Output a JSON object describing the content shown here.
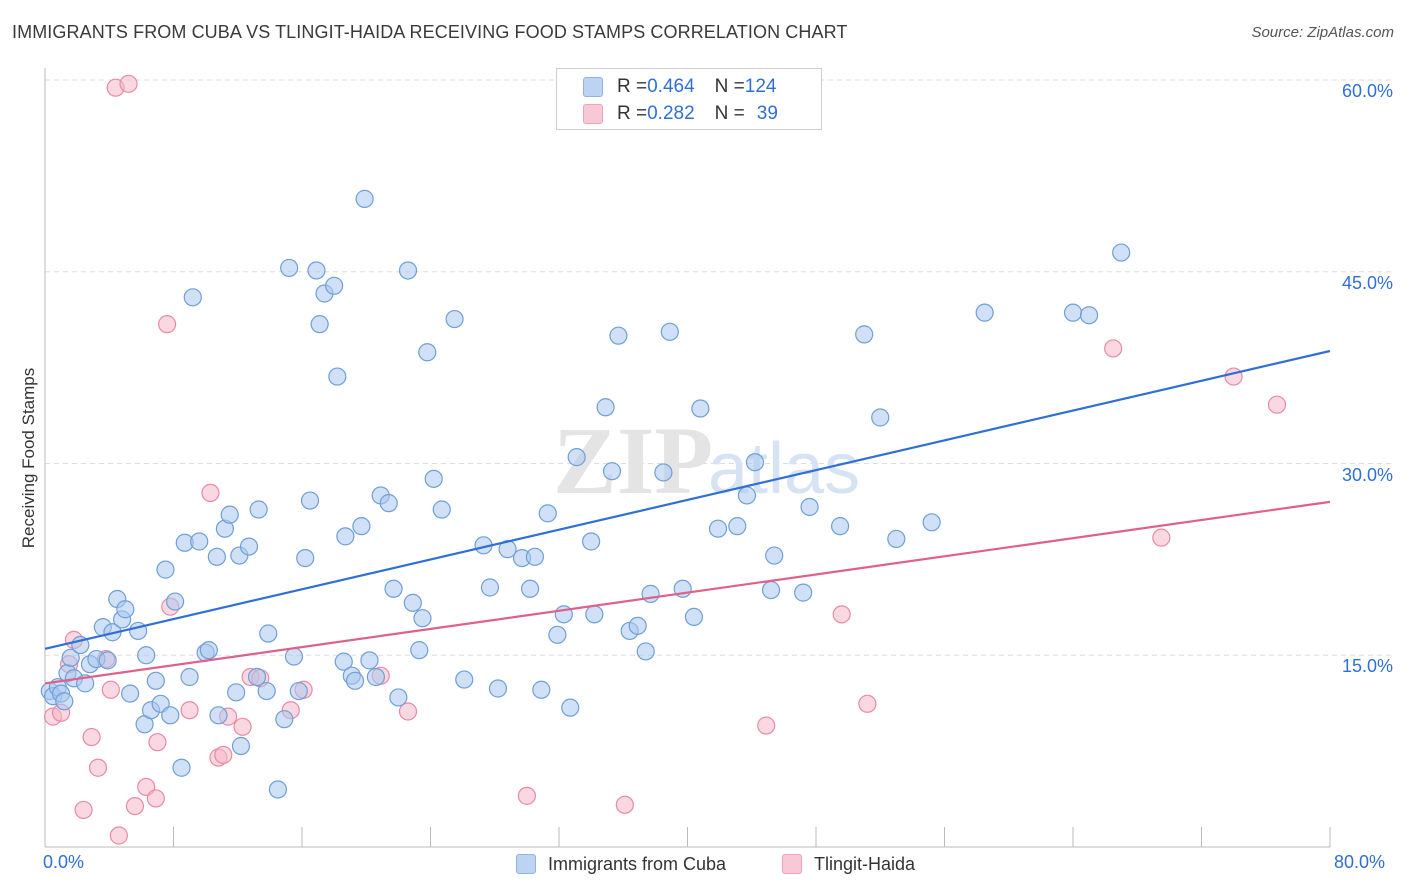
{
  "header": {
    "title": "IMMIGRANTS FROM CUBA VS TLINGIT-HAIDA RECEIVING FOOD STAMPS CORRELATION CHART",
    "source": "Source: ZipAtlas.com"
  },
  "watermark": {
    "part1": "ZIP",
    "part2": "atlas"
  },
  "legend": {
    "rows": [
      {
        "r_label": "R = ",
        "r_value": "0.464",
        "n_label": "N = ",
        "n_value": "124",
        "color": "#a9c8f0"
      },
      {
        "r_label": "R = ",
        "r_value": "0.282",
        "n_label": "N = ",
        "n_value": "39",
        "color": "#f5b8c8"
      }
    ]
  },
  "bottom_legend": {
    "series1": "Immigrants from Cuba",
    "series2": "Tlingit-Haida"
  },
  "colors": {
    "blue_fill": "#a9c8f0",
    "blue_stroke": "#6f9fd8",
    "blue_line": "#2f6fd6",
    "pink_fill": "#f5b8c8",
    "pink_stroke": "#e88aa6",
    "pink_line": "#e0608d",
    "axis_label": "#2f6fd6",
    "grid": "#dddddd"
  },
  "chart_data": {
    "type": "scatter",
    "title": "IMMIGRANTS FROM CUBA VS TLINGIT-HAIDA RECEIVING FOOD STAMPS CORRELATION CHART",
    "xlabel": "",
    "ylabel": "Receiving Food Stamps",
    "xlim": [
      0,
      80
    ],
    "ylim": [
      0,
      60
    ],
    "x_tick_labels": [
      "0.0%",
      "80.0%"
    ],
    "y_ticks": [
      15,
      30,
      45,
      60
    ],
    "y_tick_labels": [
      "15.0%",
      "30.0%",
      "45.0%",
      "60.0%"
    ],
    "grid": true,
    "legend_position": "top-center",
    "series": [
      {
        "name": "Immigrants from Cuba",
        "trend": {
          "x": [
            0,
            80
          ],
          "y": [
            15.5,
            38.8
          ]
        },
        "points": [
          [
            0.3,
            12.2
          ],
          [
            0.5,
            11.8
          ],
          [
            0.8,
            12.5
          ],
          [
            1.0,
            12.0
          ],
          [
            1.2,
            11.4
          ],
          [
            1.4,
            13.6
          ],
          [
            1.6,
            14.8
          ],
          [
            1.8,
            13.2
          ],
          [
            2.2,
            15.8
          ],
          [
            2.5,
            12.8
          ],
          [
            2.8,
            14.3
          ],
          [
            3.2,
            14.7
          ],
          [
            3.6,
            17.2
          ],
          [
            3.9,
            14.6
          ],
          [
            4.2,
            16.8
          ],
          [
            4.5,
            19.4
          ],
          [
            4.8,
            17.8
          ],
          [
            5.0,
            18.6
          ],
          [
            5.3,
            12.0
          ],
          [
            5.8,
            16.9
          ],
          [
            6.2,
            9.6
          ],
          [
            6.3,
            15.0
          ],
          [
            6.6,
            10.7
          ],
          [
            6.9,
            13.0
          ],
          [
            7.2,
            11.2
          ],
          [
            7.5,
            21.7
          ],
          [
            7.8,
            10.3
          ],
          [
            8.1,
            19.2
          ],
          [
            8.5,
            6.2
          ],
          [
            8.7,
            23.8
          ],
          [
            9.0,
            13.3
          ],
          [
            9.2,
            43.0
          ],
          [
            9.6,
            23.9
          ],
          [
            10.0,
            15.2
          ],
          [
            10.2,
            15.4
          ],
          [
            10.7,
            22.7
          ],
          [
            10.8,
            10.3
          ],
          [
            11.2,
            24.9
          ],
          [
            11.5,
            26.0
          ],
          [
            11.9,
            12.1
          ],
          [
            12.1,
            22.8
          ],
          [
            12.2,
            7.9
          ],
          [
            12.7,
            23.5
          ],
          [
            13.2,
            13.3
          ],
          [
            13.3,
            26.4
          ],
          [
            13.8,
            12.2
          ],
          [
            13.9,
            16.7
          ],
          [
            14.5,
            4.5
          ],
          [
            14.9,
            10.0
          ],
          [
            15.2,
            45.3
          ],
          [
            15.5,
            14.9
          ],
          [
            15.8,
            12.2
          ],
          [
            16.2,
            22.6
          ],
          [
            16.5,
            27.1
          ],
          [
            16.9,
            45.1
          ],
          [
            17.1,
            40.9
          ],
          [
            17.4,
            43.3
          ],
          [
            18.0,
            43.9
          ],
          [
            18.2,
            36.8
          ],
          [
            18.6,
            14.5
          ],
          [
            18.7,
            24.3
          ],
          [
            19.1,
            13.4
          ],
          [
            19.3,
            13.0
          ],
          [
            19.7,
            25.1
          ],
          [
            19.9,
            50.7
          ],
          [
            20.2,
            14.6
          ],
          [
            20.6,
            13.3
          ],
          [
            20.9,
            27.5
          ],
          [
            21.4,
            26.9
          ],
          [
            21.7,
            20.2
          ],
          [
            22.0,
            11.7
          ],
          [
            22.6,
            45.1
          ],
          [
            22.9,
            19.1
          ],
          [
            23.3,
            15.4
          ],
          [
            23.5,
            17.9
          ],
          [
            23.8,
            38.7
          ],
          [
            24.2,
            28.8
          ],
          [
            24.7,
            26.4
          ],
          [
            25.5,
            41.3
          ],
          [
            26.1,
            13.1
          ],
          [
            27.3,
            23.6
          ],
          [
            27.7,
            20.3
          ],
          [
            28.2,
            12.4
          ],
          [
            28.8,
            23.3
          ],
          [
            29.7,
            22.6
          ],
          [
            30.2,
            20.2
          ],
          [
            30.5,
            22.7
          ],
          [
            30.9,
            12.3
          ],
          [
            31.3,
            26.1
          ],
          [
            31.9,
            16.6
          ],
          [
            32.3,
            18.2
          ],
          [
            32.7,
            10.9
          ],
          [
            33.1,
            30.5
          ],
          [
            34.0,
            23.9
          ],
          [
            34.2,
            18.2
          ],
          [
            34.9,
            34.4
          ],
          [
            35.3,
            29.4
          ],
          [
            35.7,
            40.0
          ],
          [
            36.4,
            16.9
          ],
          [
            36.9,
            17.3
          ],
          [
            37.4,
            15.3
          ],
          [
            37.7,
            19.8
          ],
          [
            38.5,
            29.3
          ],
          [
            38.9,
            40.3
          ],
          [
            39.7,
            20.2
          ],
          [
            40.4,
            18.0
          ],
          [
            40.8,
            34.3
          ],
          [
            41.9,
            24.9
          ],
          [
            43.1,
            25.1
          ],
          [
            43.7,
            27.5
          ],
          [
            44.2,
            30.1
          ],
          [
            45.2,
            20.1
          ],
          [
            45.4,
            22.8
          ],
          [
            47.2,
            19.9
          ],
          [
            47.6,
            26.6
          ],
          [
            49.5,
            25.1
          ],
          [
            51.0,
            40.1
          ],
          [
            52.0,
            33.6
          ],
          [
            53.0,
            24.1
          ],
          [
            55.2,
            25.4
          ],
          [
            58.5,
            41.8
          ],
          [
            64.0,
            41.8
          ],
          [
            65.0,
            41.6
          ],
          [
            67.0,
            46.5
          ]
        ]
      },
      {
        "name": "Tlingit-Haida",
        "trend": {
          "x": [
            0,
            80
          ],
          "y": [
            12.8,
            27.0
          ]
        },
        "points": [
          [
            0.5,
            10.2
          ],
          [
            1.0,
            10.5
          ],
          [
            1.5,
            14.3
          ],
          [
            1.8,
            16.2
          ],
          [
            2.4,
            2.9
          ],
          [
            2.9,
            8.6
          ],
          [
            3.3,
            6.2
          ],
          [
            3.8,
            14.7
          ],
          [
            4.1,
            12.3
          ],
          [
            4.6,
            0.9
          ],
          [
            4.4,
            59.4
          ],
          [
            5.2,
            59.7
          ],
          [
            5.6,
            3.2
          ],
          [
            6.3,
            4.7
          ],
          [
            6.9,
            3.8
          ],
          [
            7.0,
            8.2
          ],
          [
            7.6,
            40.9
          ],
          [
            7.8,
            18.8
          ],
          [
            9.0,
            10.7
          ],
          [
            10.3,
            27.7
          ],
          [
            10.8,
            7.0
          ],
          [
            11.1,
            7.2
          ],
          [
            11.4,
            10.2
          ],
          [
            12.3,
            9.4
          ],
          [
            12.8,
            13.3
          ],
          [
            13.4,
            13.2
          ],
          [
            15.3,
            10.7
          ],
          [
            16.1,
            12.3
          ],
          [
            20.9,
            13.4
          ],
          [
            22.6,
            10.6
          ],
          [
            30.0,
            4.0
          ],
          [
            36.1,
            3.3
          ],
          [
            44.9,
            9.5
          ],
          [
            49.6,
            18.2
          ],
          [
            51.2,
            11.2
          ],
          [
            66.5,
            39.0
          ],
          [
            69.5,
            24.2
          ],
          [
            74.0,
            36.8
          ],
          [
            76.7,
            34.6
          ]
        ]
      }
    ]
  }
}
